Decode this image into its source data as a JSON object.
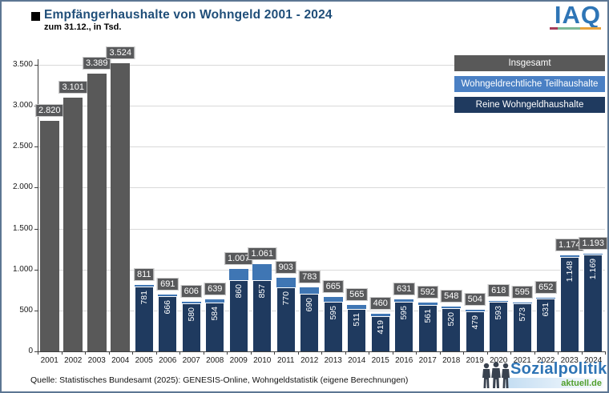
{
  "header": {
    "title": "Empfängerhaushalte von Wohngeld 2001 - 2024",
    "subtitle": "zum 31.12., in Tsd.",
    "iaq_logo_text": "IAQ",
    "iaq_underline_colors": [
      "#a63d5a",
      "#7cb897",
      "#e8a23c"
    ]
  },
  "legend": {
    "items": [
      {
        "label": "Insgesamt",
        "color": "#595959"
      },
      {
        "label": "Wohngeldrechtliche Teilhaushalte",
        "color": "#4a80c4"
      },
      {
        "label": "Reine Wohngeldhaushalte",
        "color": "#1f3a5f"
      }
    ]
  },
  "chart_data": {
    "type": "bar",
    "stacked": true,
    "title": "Empfängerhaushalte von Wohngeld 2001 - 2024, zum 31.12., in Tsd.",
    "categories": [
      "2001",
      "2002",
      "2003",
      "2004",
      "2005",
      "2006",
      "2007",
      "2008",
      "2009",
      "2010",
      "2011",
      "2012",
      "2013",
      "2014",
      "2015",
      "2016",
      "2017",
      "2018",
      "2019",
      "2020",
      "2021",
      "2022",
      "2023",
      "2024"
    ],
    "series": [
      {
        "name": "Insgesamt",
        "color": "#595959",
        "values": [
          2820,
          3101,
          3389,
          3524,
          null,
          null,
          null,
          null,
          null,
          null,
          null,
          null,
          null,
          null,
          null,
          null,
          null,
          null,
          null,
          null,
          null,
          null,
          null,
          null
        ]
      },
      {
        "name": "Reine Wohngeldhaushalte",
        "color": "#1f3a5f",
        "values": [
          null,
          null,
          null,
          null,
          781,
          666,
          580,
          584,
          860,
          857,
          770,
          690,
          595,
          511,
          419,
          595,
          561,
          520,
          479,
          593,
          573,
          631,
          1148,
          1169
        ]
      },
      {
        "name": "Wohngeldrechtliche Teilhaushalte",
        "color": "#3f76b4",
        "values": [
          null,
          null,
          null,
          null,
          30,
          25,
          26,
          55,
          147,
          204,
          133,
          93,
          70,
          54,
          41,
          36,
          31,
          28,
          25,
          25,
          22,
          21,
          26,
          24
        ]
      }
    ],
    "totals": [
      2820,
      3101,
      3389,
      3524,
      811,
      691,
      606,
      639,
      1007,
      1061,
      903,
      783,
      665,
      565,
      460,
      631,
      592,
      548,
      504,
      618,
      595,
      652,
      1174,
      1193
    ],
    "total_labels": [
      "2.820",
      "3.101",
      "3.389",
      "3.524",
      "811",
      "691",
      "606",
      "639",
      "1.007",
      "1.061",
      "903",
      "783",
      "665",
      "565",
      "460",
      "631",
      "592",
      "548",
      "504",
      "618",
      "595",
      "652",
      "1.174",
      "1.193"
    ],
    "segment_labels": [
      null,
      null,
      null,
      null,
      "781",
      "666",
      "580",
      "584",
      "860",
      "857",
      "770",
      "690",
      "595",
      "511",
      "419",
      "595",
      "561",
      "520",
      "479",
      "593",
      "573",
      "631",
      "1.148",
      "1.169"
    ],
    "xlabel": "",
    "ylabel": "",
    "ylim": [
      0,
      3500
    ],
    "yticks": [
      0,
      500,
      1000,
      1500,
      2000,
      2500,
      3000,
      3500
    ],
    "ytick_labels": [
      "0",
      "500",
      "1.000",
      "1.500",
      "2.000",
      "2.500",
      "3.000",
      "3.500"
    ],
    "grid": true,
    "legend_position": "top-right"
  },
  "footer": {
    "source": "Quelle: Statistisches Bundesamt (2025): GENESIS-Online, Wohngeldstatistik (eigene Berechnungen)",
    "logo": {
      "line1": "Sozialpolitik-",
      "line2": "aktuell.de",
      "line1_color": "#2e74b5",
      "line2_color": "#52a02e"
    }
  }
}
